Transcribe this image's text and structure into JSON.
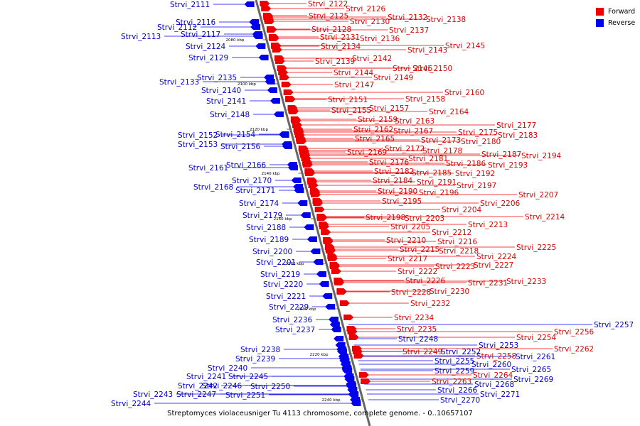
{
  "legend": {
    "forward_label": "Forward",
    "reverse_label": "Reverse",
    "forward_color": "#ee0000",
    "reverse_color": "#0000ee"
  },
  "caption": "Streptomyces violaceusniger Tu 4113 chromosome, complete genome. - 0..10657107",
  "kbp_marks": [
    "2080 kbp",
    "2100 kbp",
    "2120 kbp",
    "2140 kbp",
    "2160 kbp",
    "2180 kbp",
    "2200 kbp",
    "2220 kbp",
    "2240 kbp"
  ],
  "forward_genes": [
    "Strvi_2122",
    "Strvi_2126",
    "Strvi_2125",
    "Strvi_2130",
    "Strvi_2132",
    "Strvi_2138",
    "Strvi_2128",
    "Strvi_2137",
    "Strvi_2131",
    "Strvi_2136",
    "Strvi_2134",
    "Strvi_2143",
    "Strvi_2145",
    "Strvi_2142",
    "Strvi_2139",
    "Strvi_2146",
    "Strvi_2150",
    "Strvi_2144",
    "Strvi_2149",
    "Strvi_2147",
    "Strvi_2160",
    "Strvi_2158",
    "Strvi_2151",
    "Strvi_2157",
    "Strvi_2155",
    "Strvi_2164",
    "Strvi_2159",
    "Strvi_2163",
    "Strvi_2177",
    "Strvi_2162",
    "Strvi_2167",
    "Strvi_2175",
    "Strvi_2183",
    "Strvi_2165",
    "Strvi_2173",
    "Strvi_2180",
    "Strvi_2172",
    "Strvi_2178",
    "Strvi_2169",
    "Strvi_2187",
    "Strvi_2194",
    "Strvi_2181",
    "Strvi_2176",
    "Strvi_2186",
    "Strvi_2193",
    "Strvi_2182",
    "Strvi_2185",
    "Strvi_2192",
    "Strvi_2184",
    "Strvi_2191",
    "Strvi_2197",
    "Strvi_2190",
    "Strvi_2196",
    "Strvi_2207",
    "Strvi_2195",
    "Strvi_2206",
    "Strvi_2204",
    "Strvi_2214",
    "Strvi_2198",
    "Strvi_2203",
    "Strvi_2213",
    "Strvi_2205",
    "Strvi_2212",
    "Strvi_2210",
    "Strvi_2216",
    "Strvi_2225",
    "Strvi_2215",
    "Strvi_2218",
    "Strvi_2224",
    "Strvi_2217",
    "Strvi_2223",
    "Strvi_2227",
    "Strvi_2222",
    "Strvi_2226",
    "Strvi_2233",
    "Strvi_2231",
    "Strvi_2228",
    "Strvi_2230",
    "Strvi_2232",
    "Strvi_2234",
    "Strvi_2235",
    "Strvi_2256",
    "Strvi_2254",
    "Strvi_2262",
    "Strvi_2249",
    "Strvi_2258",
    "Strvi_2264",
    "Strvi_2263"
  ],
  "reverse_genes": [
    "Strvi_2111",
    "Strvi_2116",
    "Strvi_2112",
    "Strvi_2113",
    "Strvi_2117",
    "Strvi_2124",
    "Strvi_2129",
    "Strvi_2135",
    "Strvi_2133",
    "Strvi_2140",
    "Strvi_2141",
    "Strvi_2148",
    "Strvi_2152",
    "Strvi_2154",
    "Strvi_2153",
    "Strvi_2156",
    "Strvi_2161",
    "Strvi_2166",
    "Strvi_2170",
    "Strvi_2168",
    "Strvi_2171",
    "Strvi_2174",
    "Strvi_2179",
    "Strvi_2188",
    "Strvi_2189",
    "Strvi_2200",
    "Strvi_2201",
    "Strvi_2219",
    "Strvi_2220",
    "Strvi_2221",
    "Strvi_2229",
    "Strvi_2236",
    "Strvi_2237",
    "Strvi_2248",
    "Strvi_2238",
    "Strvi_2239",
    "Strvi_2240",
    "Strvi_2241",
    "Strvi_2245",
    "Strvi_2242",
    "Strvi_2246",
    "Strvi_2250",
    "Strvi_2243",
    "Strvi_2247",
    "Strvi_2251",
    "Strvi_2244",
    "Strvi_2257",
    "Strvi_2253",
    "Strvi_2252",
    "Strvi_2261",
    "Strvi_2255",
    "Strvi_2260",
    "Strvi_2265",
    "Strvi_2259",
    "Strvi_2269",
    "Strvi_2268",
    "Strvi_2266",
    "Strvi_2270",
    "Strvi_2271"
  ]
}
